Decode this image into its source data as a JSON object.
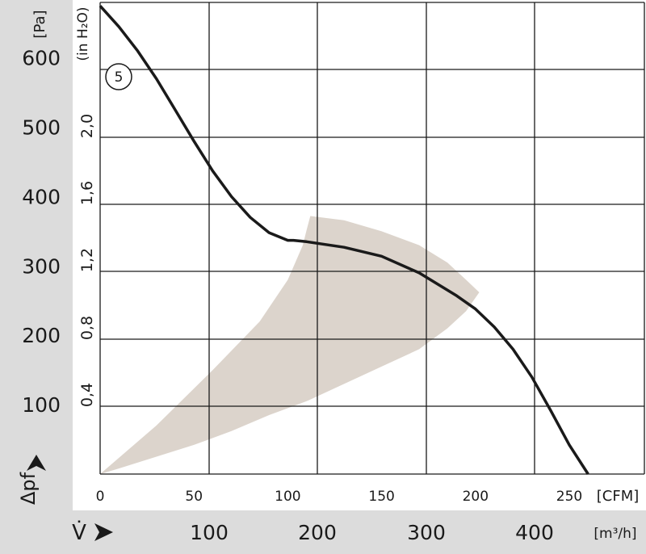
{
  "chart_data": {
    "type": "line",
    "title": "",
    "x_primary": {
      "unit_label": "[CFM]",
      "ticks": [
        0,
        50,
        100,
        150,
        200,
        250
      ],
      "range": [
        0,
        290
      ]
    },
    "x_secondary": {
      "unit_label": "[m³/h]",
      "axis_symbol": "V̇",
      "ticks": [
        100,
        200,
        300,
        400
      ]
    },
    "y_primary": {
      "unit_label": "[Pa]",
      "axis_symbol": "Δpf",
      "ticks": [
        100,
        200,
        300,
        400,
        500,
        600
      ],
      "range": [
        0,
        680
      ]
    },
    "y_secondary": {
      "unit_label": "(in H₂O)",
      "ticks": [
        "0,4",
        "0,8",
        "1,2",
        "1,6",
        "2,0"
      ]
    },
    "series": [
      {
        "marker_label": "5",
        "x": [
          0,
          10,
          20,
          30,
          40,
          50,
          60,
          70,
          80,
          90,
          100,
          103,
          110,
          130,
          150,
          170,
          190,
          200,
          210,
          220,
          230,
          240,
          250,
          260
        ],
        "y": [
          675,
          645,
          610,
          570,
          525,
          480,
          437,
          400,
          370,
          348,
          337,
          337,
          335,
          327,
          314,
          290,
          257,
          238,
          212,
          180,
          140,
          92,
          42,
          0
        ]
      }
    ],
    "operating_region": {
      "upper_x": [
        0,
        30,
        60,
        85,
        100,
        108,
        110,
        112
      ],
      "upper_y": [
        0,
        70,
        150,
        220,
        280,
        330,
        352,
        372
      ],
      "outer_x": [
        112,
        130,
        150,
        170,
        185,
        195,
        202
      ],
      "outer_y": [
        372,
        366,
        350,
        330,
        305,
        280,
        262
      ],
      "lower_x": [
        202,
        195,
        185,
        170,
        150,
        130,
        110,
        90,
        70,
        50,
        30,
        10,
        0
      ],
      "lower_y": [
        262,
        235,
        210,
        180,
        155,
        130,
        105,
        85,
        62,
        42,
        25,
        8,
        0
      ]
    }
  },
  "colors": {
    "curve": "#1a1a1a",
    "region": "#dcd4cc",
    "band": "#dcdcdc",
    "grid": "#1a1a1a"
  }
}
